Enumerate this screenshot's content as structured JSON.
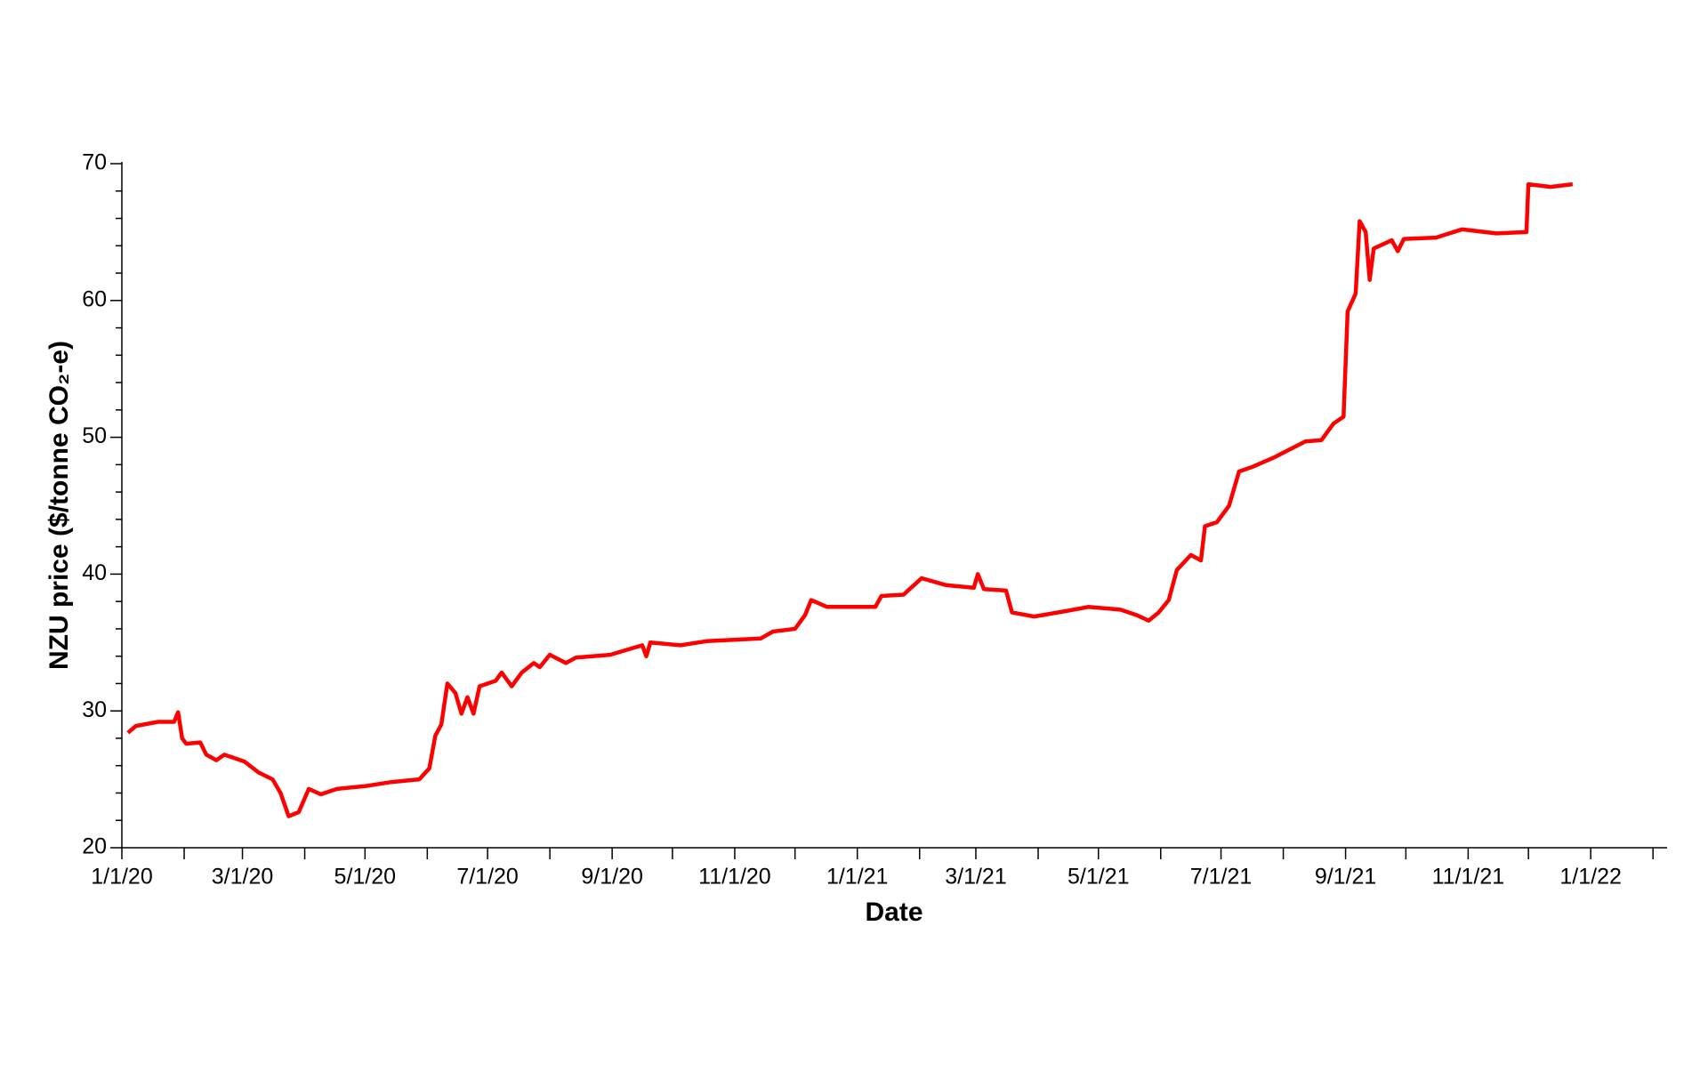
{
  "chart_data": {
    "type": "line",
    "x_label": "Date",
    "y_label": "NZU price ($/tonne CO₂-e)",
    "color": "#ff0000",
    "x": [
      "2020-01-04",
      "2020-01-08",
      "2020-01-19",
      "2020-01-27",
      "2020-01-29",
      "2020-01-31",
      "2020-02-02",
      "2020-02-09",
      "2020-02-12",
      "2020-02-17",
      "2020-02-21",
      "2020-03-02",
      "2020-03-09",
      "2020-03-16",
      "2020-03-20",
      "2020-03-24",
      "2020-03-29",
      "2020-04-03",
      "2020-04-09",
      "2020-04-17",
      "2020-05-01",
      "2020-05-14",
      "2020-05-28",
      "2020-06-02",
      "2020-06-05",
      "2020-06-08",
      "2020-06-11",
      "2020-06-15",
      "2020-06-18",
      "2020-06-21",
      "2020-06-24",
      "2020-06-27",
      "2020-07-05",
      "2020-07-08",
      "2020-07-13",
      "2020-07-18",
      "2020-07-24",
      "2020-07-27",
      "2020-08-01",
      "2020-08-09",
      "2020-08-14",
      "2020-08-31",
      "2020-09-16",
      "2020-09-18",
      "2020-09-20",
      "2020-10-05",
      "2020-10-18",
      "2020-11-14",
      "2020-11-20",
      "2020-12-01",
      "2020-12-06",
      "2020-12-09",
      "2020-12-17",
      "2021-01-10",
      "2021-01-13",
      "2021-01-24",
      "2021-02-02",
      "2021-02-14",
      "2021-02-28",
      "2021-03-02",
      "2021-03-05",
      "2021-03-16",
      "2021-03-19",
      "2021-03-30",
      "2021-04-15",
      "2021-04-26",
      "2021-05-12",
      "2021-05-20",
      "2021-05-26",
      "2021-05-31",
      "2021-06-05",
      "2021-06-09",
      "2021-06-16",
      "2021-06-21",
      "2021-06-23",
      "2021-06-29",
      "2021-07-05",
      "2021-07-10",
      "2021-07-16",
      "2021-07-27",
      "2021-08-12",
      "2021-08-20",
      "2021-08-26",
      "2021-08-31",
      "2021-09-02",
      "2021-09-06",
      "2021-09-08",
      "2021-09-11",
      "2021-09-13",
      "2021-09-15",
      "2021-09-24",
      "2021-09-27",
      "2021-09-30",
      "2021-10-16",
      "2021-10-29",
      "2021-11-15",
      "2021-11-30",
      "2021-12-01",
      "2021-12-12",
      "2021-12-23"
    ],
    "values": [
      28.4,
      28.9,
      29.2,
      29.2,
      29.9,
      28.0,
      27.6,
      27.7,
      26.8,
      26.4,
      26.8,
      26.3,
      25.5,
      25.0,
      24.0,
      22.3,
      22.6,
      24.3,
      23.9,
      24.3,
      24.5,
      24.8,
      25.0,
      25.8,
      28.2,
      29.0,
      32.0,
      31.3,
      29.8,
      31.0,
      29.8,
      31.8,
      32.2,
      32.8,
      31.8,
      32.8,
      33.5,
      33.2,
      34.1,
      33.5,
      33.9,
      34.1,
      34.8,
      34.0,
      35.0,
      34.8,
      35.1,
      35.3,
      35.8,
      36.0,
      37.0,
      38.1,
      37.6,
      37.6,
      38.4,
      38.5,
      39.7,
      39.2,
      39.0,
      40.0,
      38.9,
      38.8,
      37.2,
      36.9,
      37.3,
      37.6,
      37.4,
      37.0,
      36.6,
      37.2,
      38.1,
      40.3,
      41.4,
      41.0,
      43.5,
      43.8,
      45.0,
      47.5,
      47.8,
      48.5,
      49.7,
      49.8,
      51.0,
      51.5,
      59.2,
      60.5,
      65.8,
      65.0,
      61.5,
      63.8,
      64.4,
      63.6,
      64.5,
      64.6,
      65.2,
      64.9,
      65.0,
      68.5,
      68.3,
      68.5
    ],
    "xlim": [
      "2020-01-01",
      "2022-02-08"
    ],
    "xticks": [
      {
        "value": "2020-01-01",
        "label": "1/1/20"
      },
      {
        "value": "2020-03-01",
        "label": "3/1/20"
      },
      {
        "value": "2020-05-01",
        "label": "5/1/20"
      },
      {
        "value": "2020-07-01",
        "label": "7/1/20"
      },
      {
        "value": "2020-09-01",
        "label": "9/1/20"
      },
      {
        "value": "2020-11-01",
        "label": "11/1/20"
      },
      {
        "value": "2021-01-01",
        "label": "1/1/21"
      },
      {
        "value": "2021-03-01",
        "label": "3/1/21"
      },
      {
        "value": "2021-05-01",
        "label": "5/1/21"
      },
      {
        "value": "2021-07-01",
        "label": "7/1/21"
      },
      {
        "value": "2021-09-01",
        "label": "9/1/21"
      },
      {
        "value": "2021-11-01",
        "label": "11/1/21"
      },
      {
        "value": "2022-01-01",
        "label": "1/1/22"
      }
    ],
    "xminorticks": [
      "2020-02-01",
      "2020-04-01",
      "2020-06-01",
      "2020-08-01",
      "2020-10-01",
      "2020-12-01",
      "2021-02-01",
      "2021-04-01",
      "2021-06-01",
      "2021-08-01",
      "2021-10-01",
      "2021-12-01",
      "2022-02-01"
    ],
    "ylim": [
      20,
      70
    ],
    "yticks": [
      20,
      30,
      40,
      50,
      60,
      70
    ],
    "yminorticks": [
      22,
      24,
      26,
      28,
      32,
      34,
      36,
      38,
      42,
      44,
      46,
      48,
      52,
      54,
      56,
      58,
      62,
      64,
      66,
      68
    ]
  }
}
